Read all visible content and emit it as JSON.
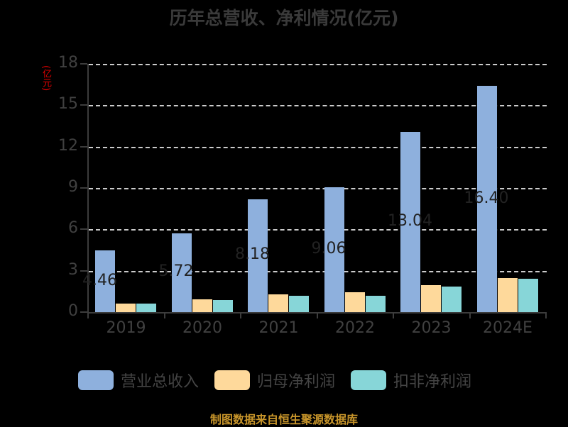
{
  "title": "历年总营收、净利情况(亿元)",
  "y_axis_unit": "(亿元)",
  "footer": "制图数据来自恒生聚源数据库",
  "colors": {
    "revenue": "#8eb0dd",
    "net_profit": "#fed99b",
    "deducted_net_profit": "#87d6d8"
  },
  "legend": [
    {
      "label": "营业总收入",
      "color": "#8eb0dd"
    },
    {
      "label": "归母净利润",
      "color": "#fed99b"
    },
    {
      "label": "扣非净利润",
      "color": "#87d6d8"
    }
  ],
  "chart_data": {
    "type": "bar",
    "title": "历年总营收、净利情况(亿元)",
    "xlabel": "",
    "ylabel": "(亿元)",
    "ylim": [
      0,
      18
    ],
    "yticks": [
      0,
      3,
      6,
      9,
      12,
      15,
      18
    ],
    "grid": true,
    "legend_position": "bottom",
    "categories": [
      "2019",
      "2020",
      "2021",
      "2022",
      "2023",
      "2024E"
    ],
    "series": [
      {
        "name": "营业总收入",
        "values": [
          4.46,
          5.72,
          8.18,
          9.06,
          13.04,
          16.4
        ],
        "labels": [
          "4.46",
          "5.72",
          "8.18",
          "9.06",
          "13.04",
          "16.40"
        ]
      },
      {
        "name": "归母净利润",
        "values": [
          0.62,
          0.93,
          1.29,
          1.44,
          1.95,
          2.47
        ]
      },
      {
        "name": "扣非净利润",
        "values": [
          0.62,
          0.87,
          1.18,
          1.18,
          1.85,
          2.42
        ]
      }
    ]
  }
}
